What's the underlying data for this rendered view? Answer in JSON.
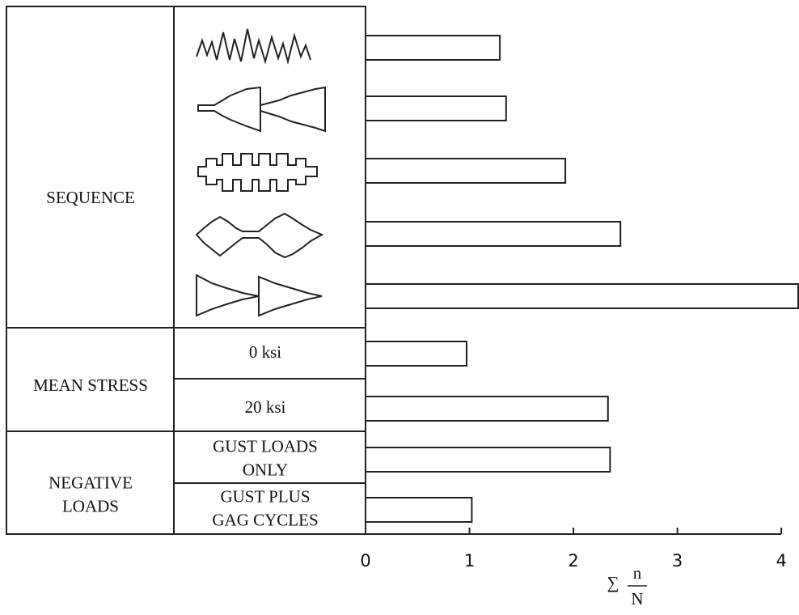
{
  "chart_data": {
    "type": "bar",
    "orientation": "horizontal",
    "groups": [
      [
        "SEQUENCE"
      ],
      [
        "MEAN STRESS"
      ],
      [
        "NEGATIVE",
        "LOADS"
      ]
    ],
    "categories": [
      null,
      null,
      null,
      null,
      null,
      [
        "0 ksi"
      ],
      [
        "20 ksi"
      ],
      [
        "GUST LOADS",
        "ONLY"
      ],
      [
        "GUST PLUS",
        "GAG CYCLES"
      ]
    ],
    "values": [
      1.3,
      1.36,
      1.93,
      2.46,
      4.17,
      0.98,
      2.34,
      2.36,
      1.03
    ],
    "color": "#ffffff",
    "xlim": [
      0,
      4.17
    ],
    "xticks": [
      0,
      1,
      2,
      3,
      4
    ],
    "xlabel": {
      "symbol": "∑",
      "numerator": "n",
      "denominator": "N"
    }
  }
}
